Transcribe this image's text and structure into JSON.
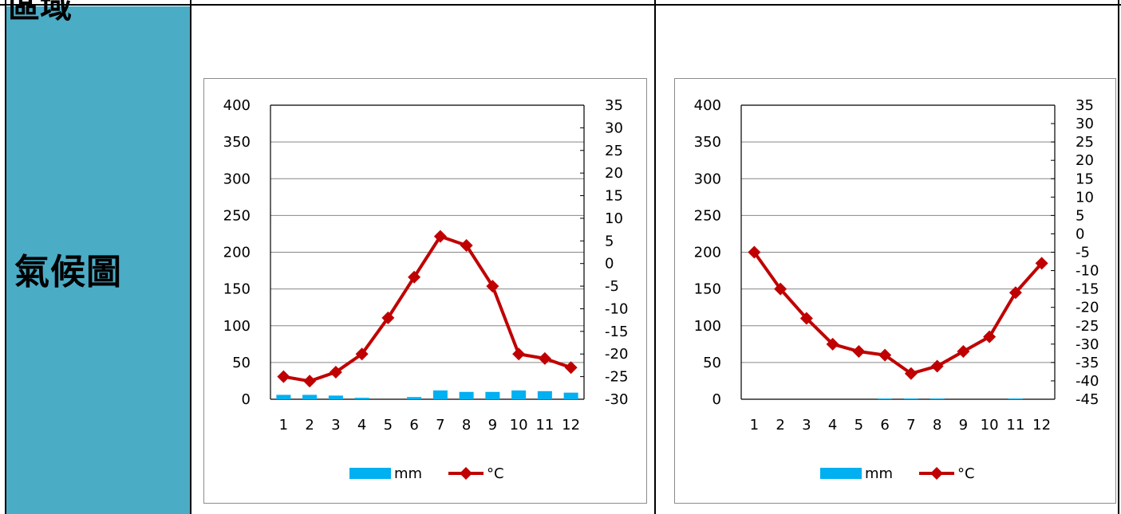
{
  "row": {
    "label": "氣候圖",
    "header_fragment": "區域"
  },
  "colors": {
    "label_cell_bg": "#4bacc6",
    "precip_bar": "#00b0f0",
    "temperature_line": "#c00000"
  },
  "chart_data": [
    {
      "type": "bar+line",
      "categories": [
        "1",
        "2",
        "3",
        "4",
        "5",
        "6",
        "7",
        "8",
        "9",
        "10",
        "11",
        "12"
      ],
      "series": [
        {
          "name": "mm",
          "type": "bar",
          "axis": "left",
          "values": [
            6,
            6,
            5,
            2,
            0,
            3,
            12,
            10,
            10,
            12,
            11,
            9
          ]
        },
        {
          "name": "°C",
          "type": "line",
          "axis": "right",
          "values": [
            -25,
            -26,
            -24,
            -20,
            -12,
            -3,
            6,
            4,
            -5,
            -20,
            -21,
            -23
          ]
        }
      ],
      "y_left": {
        "min": 0,
        "max": 400,
        "step": 50,
        "ticks": [
          "400",
          "350",
          "300",
          "250",
          "200",
          "150",
          "100",
          "50",
          "0"
        ]
      },
      "y_right": {
        "min": -30,
        "max": 35,
        "step": 5,
        "ticks": [
          "35",
          "30",
          "25",
          "20",
          "15",
          "10",
          "5",
          "0",
          "-5",
          "-10",
          "-15",
          "-20",
          "-25",
          "-30"
        ]
      },
      "grid": true,
      "legend": "bottom",
      "legend_entries": [
        "mm",
        "°C"
      ]
    },
    {
      "type": "bar+line",
      "categories": [
        "1",
        "2",
        "3",
        "4",
        "5",
        "6",
        "7",
        "8",
        "9",
        "10",
        "11",
        "12"
      ],
      "series": [
        {
          "name": "mm",
          "type": "bar",
          "axis": "left",
          "values": [
            0,
            0,
            0,
            0,
            0,
            1,
            1,
            1,
            0,
            0,
            1,
            0
          ]
        },
        {
          "name": "°C",
          "type": "line",
          "axis": "right",
          "values": [
            -5,
            -15,
            -23,
            -30,
            -32,
            -33,
            -38,
            -36,
            -32,
            -28,
            -16,
            -8
          ]
        }
      ],
      "y_left": {
        "min": 0,
        "max": 400,
        "step": 50,
        "ticks": [
          "400",
          "350",
          "300",
          "250",
          "200",
          "150",
          "100",
          "50",
          "0"
        ]
      },
      "y_right": {
        "min": -45,
        "max": 35,
        "step": 5,
        "ticks": [
          "35",
          "30",
          "25",
          "20",
          "15",
          "10",
          "5",
          "0",
          "-5",
          "-10",
          "-15",
          "-20",
          "-25",
          "-30",
          "-35",
          "-40",
          "-45"
        ]
      },
      "grid": true,
      "legend": "bottom",
      "legend_entries": [
        "mm",
        "°C"
      ]
    }
  ]
}
